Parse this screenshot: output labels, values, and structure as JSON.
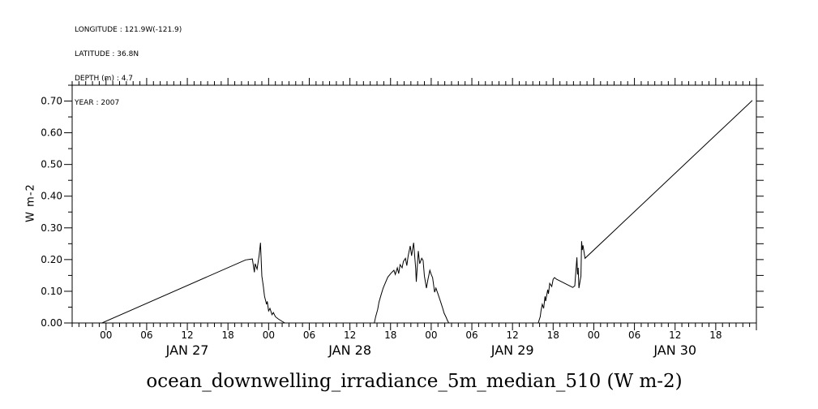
{
  "header": {
    "lines": [
      "LONGITUDE : 121.9W(-121.9)",
      "LATITUDE : 36.8N",
      "DEPTH (m) : 4.7",
      "YEAR : 2007"
    ]
  },
  "chart_data": {
    "type": "line",
    "title": "ocean_downwelling_irradiance_5m_median_510 (W m-2)",
    "ylabel": "W m-2",
    "colors": {
      "line": "#000000",
      "text": "#000000",
      "background": "#ffffff"
    },
    "grid": false,
    "legend": "none",
    "x_axis": {
      "description": "time in hours relative to JAN 27 00:00, year 2007",
      "min": -5,
      "max": 96,
      "minor_step_hours": 1,
      "major_step_hours": 6,
      "hour_label_cycle": [
        "00",
        "06",
        "12",
        "18"
      ],
      "labeled_hours_from": 0,
      "labeled_hours_to": 90,
      "days": [
        {
          "label": "JAN 27",
          "noon_t": 12
        },
        {
          "label": "JAN 28",
          "noon_t": 36
        },
        {
          "label": "JAN 29",
          "noon_t": 60
        },
        {
          "label": "JAN 30",
          "noon_t": 84
        }
      ]
    },
    "y_axis": {
      "min": 0.0,
      "max": 0.75,
      "major_step": 0.1,
      "minor_step": 0.05,
      "tick_labels": [
        "0.00",
        "0.10",
        "0.20",
        "0.30",
        "0.40",
        "0.50",
        "0.60",
        "0.70"
      ]
    },
    "series": [
      [
        -0.6,
        0.0
      ],
      [
        20.6,
        0.199
      ],
      [
        21.6,
        0.202
      ],
      [
        21.9,
        0.16
      ],
      [
        22.0,
        0.187
      ],
      [
        22.3,
        0.17
      ],
      [
        22.6,
        0.212
      ],
      [
        22.8,
        0.253
      ],
      [
        23.0,
        0.148
      ],
      [
        23.2,
        0.118
      ],
      [
        23.4,
        0.084
      ],
      [
        23.7,
        0.059
      ],
      [
        23.8,
        0.068
      ],
      [
        24.0,
        0.038
      ],
      [
        24.2,
        0.046
      ],
      [
        24.5,
        0.026
      ],
      [
        24.7,
        0.033
      ],
      [
        25.0,
        0.02
      ],
      [
        25.4,
        0.013
      ],
      [
        26.0,
        0.005
      ],
      [
        26.4,
        0.0
      ],
      [
        39.6,
        0.0
      ],
      [
        39.8,
        0.02
      ],
      [
        40.1,
        0.043
      ],
      [
        40.3,
        0.066
      ],
      [
        40.6,
        0.089
      ],
      [
        40.9,
        0.11
      ],
      [
        41.3,
        0.13
      ],
      [
        41.6,
        0.145
      ],
      [
        42.1,
        0.158
      ],
      [
        42.5,
        0.166
      ],
      [
        42.7,
        0.153
      ],
      [
        43.0,
        0.174
      ],
      [
        43.2,
        0.156
      ],
      [
        43.4,
        0.184
      ],
      [
        43.7,
        0.174
      ],
      [
        43.9,
        0.194
      ],
      [
        44.2,
        0.204
      ],
      [
        44.4,
        0.181
      ],
      [
        44.6,
        0.212
      ],
      [
        44.9,
        0.243
      ],
      [
        45.1,
        0.212
      ],
      [
        45.4,
        0.253
      ],
      [
        45.7,
        0.174
      ],
      [
        45.8,
        0.13
      ],
      [
        46.1,
        0.227
      ],
      [
        46.3,
        0.187
      ],
      [
        46.6,
        0.204
      ],
      [
        46.8,
        0.197
      ],
      [
        47.0,
        0.148
      ],
      [
        47.3,
        0.11
      ],
      [
        47.5,
        0.135
      ],
      [
        47.8,
        0.166
      ],
      [
        48.0,
        0.153
      ],
      [
        48.2,
        0.143
      ],
      [
        48.5,
        0.097
      ],
      [
        48.7,
        0.11
      ],
      [
        49.0,
        0.092
      ],
      [
        49.2,
        0.079
      ],
      [
        49.4,
        0.066
      ],
      [
        49.7,
        0.046
      ],
      [
        49.9,
        0.031
      ],
      [
        50.2,
        0.018
      ],
      [
        50.4,
        0.008
      ],
      [
        50.6,
        0.0
      ],
      [
        63.8,
        0.0
      ],
      [
        64.1,
        0.02
      ],
      [
        64.2,
        0.038
      ],
      [
        64.4,
        0.059
      ],
      [
        64.6,
        0.046
      ],
      [
        64.8,
        0.084
      ],
      [
        64.9,
        0.069
      ],
      [
        65.2,
        0.105
      ],
      [
        65.3,
        0.092
      ],
      [
        65.5,
        0.125
      ],
      [
        65.8,
        0.115
      ],
      [
        66.0,
        0.138
      ],
      [
        66.2,
        0.143
      ],
      [
        66.5,
        0.138
      ],
      [
        68.9,
        0.112
      ],
      [
        69.2,
        0.117
      ],
      [
        69.5,
        0.207
      ],
      [
        69.6,
        0.153
      ],
      [
        69.7,
        0.174
      ],
      [
        69.8,
        0.11
      ],
      [
        70.0,
        0.135
      ],
      [
        70.1,
        0.148
      ],
      [
        70.2,
        0.258
      ],
      [
        70.3,
        0.23
      ],
      [
        70.4,
        0.245
      ],
      [
        70.7,
        0.204
      ],
      [
        95.4,
        0.702
      ]
    ]
  }
}
